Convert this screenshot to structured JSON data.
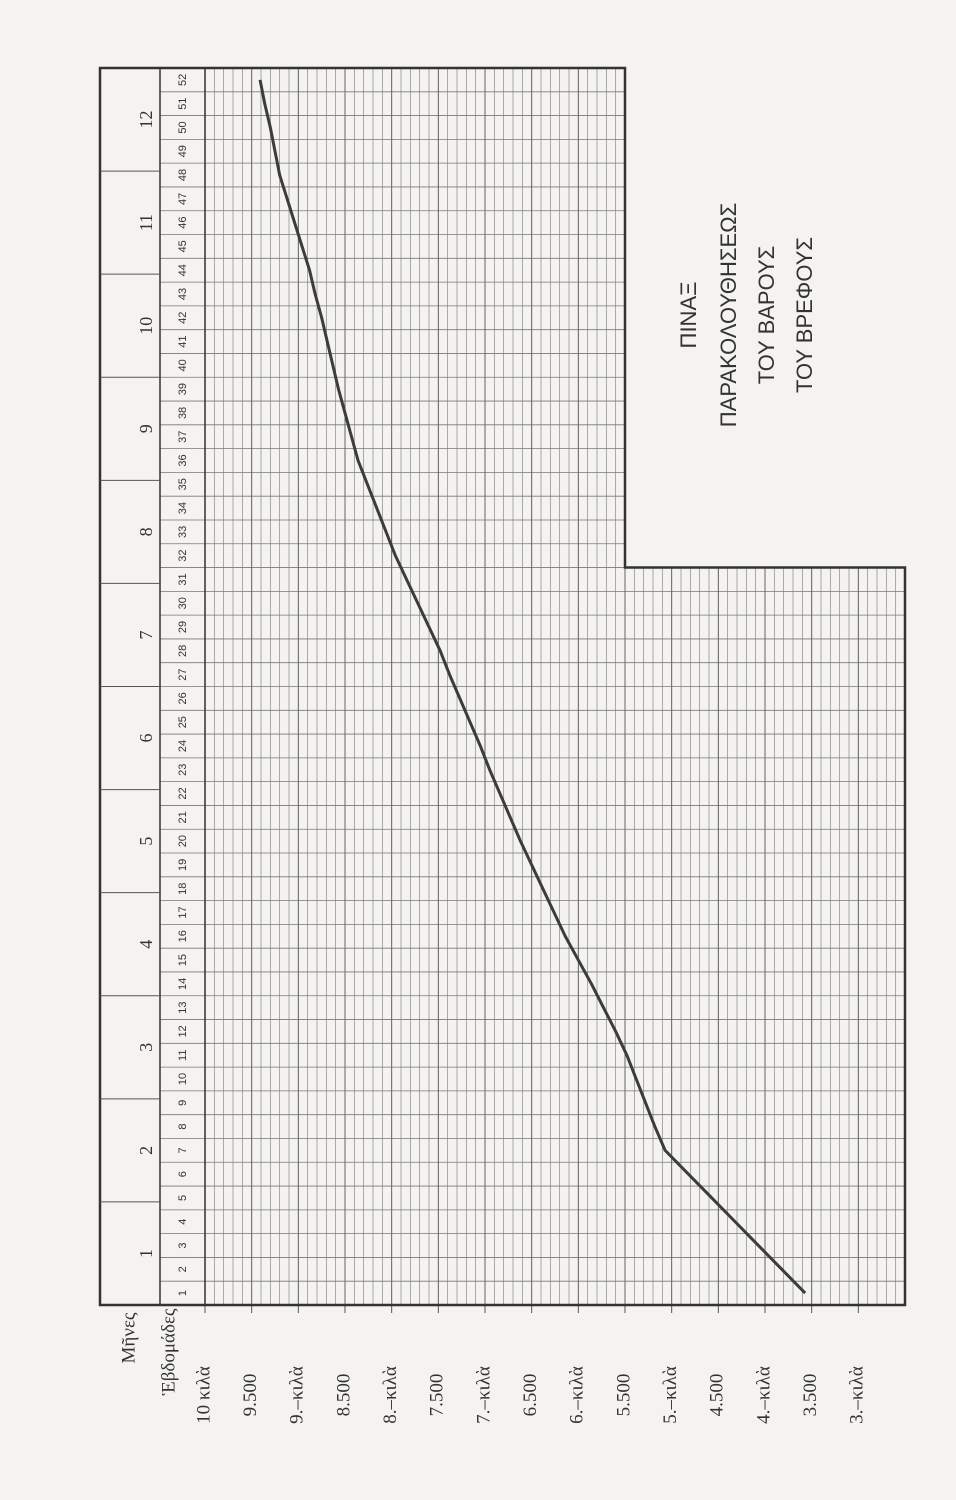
{
  "chart_data": {
    "type": "line",
    "title": [
      "ΠΙΝΑΞ",
      "ΠΑΡΑΚΟΛΟΥΘΗΣΕΩΣ",
      "ΤΟΥ ΒΑΡΟΥΣ",
      "ΤΟΥ ΒΡΕΦΟΥΣ"
    ],
    "months_label": "Μῆνες",
    "months": [
      "1",
      "2",
      "3",
      "4",
      "5",
      "6",
      "7",
      "8",
      "9",
      "10",
      "11",
      "12"
    ],
    "xlabel": "Ἑβδομάδες",
    "x": [
      1,
      2,
      3,
      4,
      5,
      6,
      7,
      8,
      9,
      10,
      11,
      12,
      13,
      14,
      15,
      16,
      17,
      18,
      19,
      20,
      21,
      22,
      23,
      24,
      25,
      26,
      27,
      28,
      29,
      30,
      31,
      32,
      33,
      34,
      35,
      36,
      37,
      38,
      39,
      40,
      41,
      42,
      43,
      44,
      45,
      46,
      47,
      48,
      49,
      50,
      51,
      52
    ],
    "xlim": [
      0.5,
      52.5
    ],
    "values": [
      3.57,
      3.82,
      4.07,
      4.32,
      4.57,
      4.82,
      5.07,
      5.18,
      5.28,
      5.38,
      5.48,
      5.6,
      5.73,
      5.86,
      6.0,
      6.14,
      6.26,
      6.38,
      6.5,
      6.62,
      6.73,
      6.84,
      6.95,
      7.05,
      7.16,
      7.27,
      7.38,
      7.48,
      7.6,
      7.72,
      7.84,
      7.96,
      8.06,
      8.16,
      8.26,
      8.36,
      8.43,
      8.5,
      8.57,
      8.63,
      8.69,
      8.75,
      8.82,
      8.88,
      8.96,
      9.04,
      9.12,
      9.2,
      9.25,
      9.3,
      9.36,
      9.41
    ],
    "color": "#3c3c3c",
    "ylim": [
      2.5,
      10
    ],
    "yticks": [
      {
        "value": 10,
        "label": "10 κιλὰ"
      },
      {
        "value": 9.5,
        "label": "9.500"
      },
      {
        "value": 9,
        "label": "9.–κιλὰ"
      },
      {
        "value": 8.5,
        "label": "8.500"
      },
      {
        "value": 8,
        "label": "8.–κιλὰ"
      },
      {
        "value": 7.5,
        "label": "7.500"
      },
      {
        "value": 7,
        "label": "7.–κιλὰ"
      },
      {
        "value": 6.5,
        "label": "6.500"
      },
      {
        "value": 6,
        "label": "6.–κιλὰ"
      },
      {
        "value": 5.5,
        "label": "5.500"
      },
      {
        "value": 5,
        "label": "5.–κιλὰ"
      },
      {
        "value": 4.5,
        "label": "4.500"
      },
      {
        "value": 4,
        "label": "4.–κιλὰ"
      },
      {
        "value": 3.5,
        "label": "3.500"
      },
      {
        "value": 3,
        "label": "3.–κιλὰ"
      }
    ],
    "grid": true
  }
}
